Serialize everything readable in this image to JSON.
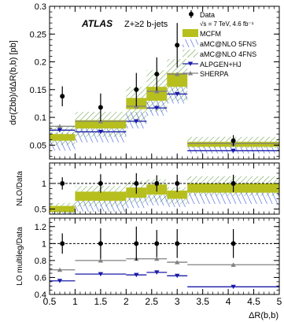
{
  "chart_data": {
    "type": "line",
    "experiment": "ATLAS",
    "process": "Z+≥2 b-jets",
    "x_axis": {
      "label": "ΔR(b,b)",
      "range": [
        0.5,
        5
      ],
      "ticks": [
        "0.5",
        "1",
        "1.5",
        "2",
        "2.5",
        "3",
        "3.5",
        "4",
        "4.5",
        "5"
      ]
    },
    "bins": [
      [
        0.4,
        1.0
      ],
      [
        1.0,
        2.0
      ],
      [
        2.0,
        2.4
      ],
      [
        2.4,
        2.8
      ],
      [
        2.8,
        3.2
      ],
      [
        3.2,
        5.0
      ]
    ],
    "legend": {
      "data": "Data",
      "data_note": "√s = 7 TeV, 4.6 fb⁻¹",
      "mcfm": "MCFM",
      "amc5": "aMC@NLO 5FNS",
      "amc4": "aMC@NLO 4FNS",
      "alpgen": "ALPGEN+HJ",
      "sherpa": "SHERPA"
    },
    "colors": {
      "data": "#000000",
      "mcfm": "#b7bf1e",
      "amc5": "#3b5bdb",
      "amc4": "#5a9a3a",
      "alpgen": "#1a1aa8",
      "sherpa": "#808080"
    },
    "top": {
      "ylabel": "dσ(Zbb) / dΔR(b,b) [pb]",
      "ylim": [
        0.025,
        0.3
      ],
      "yticks": [
        "0.05",
        "0.1",
        "0.15",
        "0.2",
        "0.25",
        "0.3"
      ],
      "data": [
        {
          "x": 0.75,
          "y": 0.138,
          "err": 0.018
        },
        {
          "x": 1.5,
          "y": 0.118,
          "err": 0.025
        },
        {
          "x": 2.2,
          "y": 0.15,
          "err": 0.03
        },
        {
          "x": 2.6,
          "y": 0.178,
          "err": 0.03
        },
        {
          "x": 3.0,
          "y": 0.23,
          "err": 0.04
        },
        {
          "x": 4.1,
          "y": 0.058,
          "err": 0.01
        }
      ],
      "mcfm": {
        "lo": [
          0.058,
          0.08,
          0.115,
          0.13,
          0.155,
          0.047
        ],
        "hi": [
          0.07,
          0.095,
          0.135,
          0.155,
          0.18,
          0.056
        ]
      },
      "amc5": {
        "lo": [
          0.04,
          0.055,
          0.08,
          0.103,
          0.125,
          0.035
        ],
        "hi": [
          0.072,
          0.09,
          0.11,
          0.135,
          0.16,
          0.05
        ]
      },
      "amc4": {
        "lo": [
          0.05,
          0.065,
          0.09,
          0.11,
          0.13,
          0.045
        ],
        "hi": [
          0.085,
          0.11,
          0.155,
          0.185,
          0.205,
          0.065
        ]
      },
      "alpgen": [
        0.077,
        0.074,
        0.093,
        0.117,
        0.142,
        0.04
      ],
      "sherpa": [
        0.084,
        0.093,
        0.12,
        0.147,
        0.178,
        0.053
      ]
    },
    "mid": {
      "ylabel": "NLO / Data",
      "ylim": [
        0.4,
        1.4
      ],
      "yticks": [
        "0.5",
        "1"
      ],
      "ref": 1.0,
      "data_err": [
        0.12,
        0.18,
        0.2,
        0.16,
        0.17,
        0.17
      ],
      "mcfm": {
        "lo": [
          0.44,
          0.66,
          0.72,
          0.78,
          0.7,
          0.82
        ],
        "hi": [
          0.56,
          0.84,
          0.92,
          0.98,
          0.86,
          1.0
        ]
      },
      "amc5": {
        "lo": [
          0.28,
          0.45,
          0.52,
          0.57,
          0.54,
          0.6
        ],
        "hi": [
          0.52,
          0.75,
          0.76,
          0.77,
          0.72,
          0.88
        ]
      },
      "amc4": {
        "lo": [
          0.36,
          0.55,
          0.62,
          0.64,
          0.6,
          0.76
        ],
        "hi": [
          0.62,
          0.95,
          1.05,
          1.08,
          0.92,
          1.14
        ]
      }
    },
    "bot": {
      "ylabel": "LO multileg / Data",
      "ylim": [
        0.4,
        1.3
      ],
      "yticks": [
        "0.4",
        "0.6",
        "0.8",
        "1",
        "1.2"
      ],
      "ref": 1.0,
      "data_err": [
        0.12,
        0.18,
        0.2,
        0.16,
        0.17,
        0.17
      ],
      "alpgen": [
        0.56,
        0.64,
        0.63,
        0.66,
        0.62,
        0.49
      ],
      "sherpa": [
        0.69,
        0.8,
        0.82,
        0.82,
        0.78,
        0.75
      ]
    }
  }
}
